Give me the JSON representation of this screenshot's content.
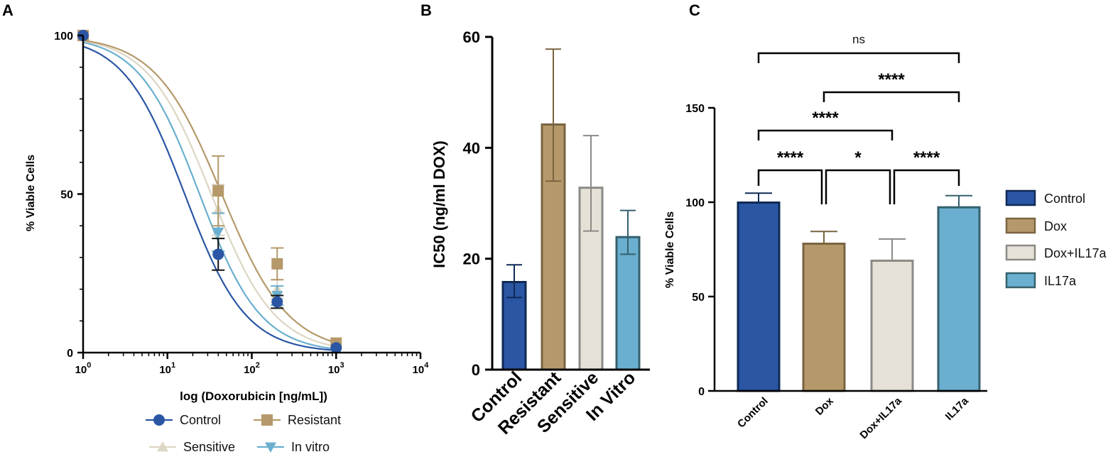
{
  "panels": {
    "a": {
      "letter": "A"
    },
    "b": {
      "letter": "B"
    },
    "c": {
      "letter": "C"
    }
  },
  "colors": {
    "control": "#2a56a4",
    "resistant": "#b5996a",
    "sensitive": "#e6e1d6",
    "invitro": "#6aafcf",
    "control_dark": "#0f2a55",
    "resistant_dark": "#7a6440",
    "sensitive_dark": "#8a8a86",
    "invitro_dark": "#35606c"
  },
  "chart_data": [
    {
      "id": "A",
      "type": "line",
      "title": "",
      "xlabel": "log (Doxorubicin [ng/mL])",
      "ylabel": "% Viable Cells",
      "x_scale": "log10",
      "xlim": [
        1,
        10000
      ],
      "ylim": [
        0,
        100
      ],
      "x_ticks": [
        {
          "value": 1,
          "base": "10",
          "exp": "0"
        },
        {
          "value": 10,
          "base": "10",
          "exp": "1"
        },
        {
          "value": 100,
          "base": "10",
          "exp": "2"
        },
        {
          "value": 1000,
          "base": "10",
          "exp": "3"
        },
        {
          "value": 10000,
          "base": "10",
          "exp": "4"
        }
      ],
      "y_ticks": [
        0,
        50,
        100
      ],
      "legend": [
        "Control",
        "Resistant",
        "Sensitive",
        "In vitro"
      ],
      "series": [
        {
          "key": "control",
          "name": "Control",
          "marker": "circle",
          "ic50": 16,
          "hill": 1.2,
          "points": [
            {
              "x": 1,
              "y": 100,
              "err": 0
            },
            {
              "x": 40,
              "y": 31,
              "err": 5
            },
            {
              "x": 200,
              "y": 16,
              "err": 2
            },
            {
              "x": 1000,
              "y": 1.5,
              "err": 0
            }
          ]
        },
        {
          "key": "resistant",
          "name": "Resistant",
          "marker": "square",
          "ic50": 44,
          "hill": 1.1,
          "points": [
            {
              "x": 1,
              "y": 100,
              "err": 0
            },
            {
              "x": 40,
              "y": 51,
              "err": 11
            },
            {
              "x": 200,
              "y": 28,
              "err": 5
            },
            {
              "x": 1000,
              "y": 3,
              "err": 0
            }
          ]
        },
        {
          "key": "sensitive",
          "name": "Sensitive",
          "marker": "triangle-up",
          "ic50": 33,
          "hill": 1.15,
          "points": [
            {
              "x": 1,
              "y": 100,
              "err": 0
            },
            {
              "x": 40,
              "y": 45,
              "err": 8
            },
            {
              "x": 200,
              "y": 20,
              "err": 3
            },
            {
              "x": 1000,
              "y": 2.5,
              "err": 0
            }
          ]
        },
        {
          "key": "invitro",
          "name": "In vitro",
          "marker": "triangle-down",
          "ic50": 24,
          "hill": 1.2,
          "points": [
            {
              "x": 1,
              "y": 100,
              "err": 0
            },
            {
              "x": 40,
              "y": 38,
              "err": 6
            },
            {
              "x": 200,
              "y": 18,
              "err": 3
            },
            {
              "x": 1000,
              "y": 2,
              "err": 0
            }
          ]
        }
      ]
    },
    {
      "id": "B",
      "type": "bar",
      "title": "",
      "xlabel": "",
      "ylabel": "IC50 (ng/ml DOX)",
      "ylim": [
        0,
        60
      ],
      "y_ticks": [
        0,
        20,
        40,
        60
      ],
      "categories": [
        "Control",
        "Resistant",
        "Sensitive",
        "In Vitro"
      ],
      "keys": [
        "control",
        "resistant",
        "sensitive",
        "invitro"
      ],
      "values": [
        15.8,
        44.2,
        32.8,
        23.9
      ],
      "err_low": [
        13.0,
        34.0,
        25.0,
        20.8
      ],
      "err_high": [
        18.9,
        57.8,
        42.2,
        28.7
      ]
    },
    {
      "id": "C",
      "type": "bar",
      "title": "",
      "xlabel": "",
      "ylabel": "% Viable Cells",
      "ylim": [
        0,
        150
      ],
      "y_ticks": [
        0,
        50,
        100,
        150
      ],
      "categories": [
        "Control",
        "Dox",
        "Dox+IL17a",
        "IL17a"
      ],
      "keys": [
        "control",
        "resistant",
        "sensitive",
        "invitro"
      ],
      "values": [
        99.8,
        78.0,
        69.0,
        97.3
      ],
      "err": [
        5.0,
        6.5,
        11.5,
        6.2
      ],
      "legend": [
        "Control",
        "Dox",
        "Dox+IL17a",
        "IL17a"
      ],
      "significance": [
        {
          "from": 0,
          "to": 3,
          "label": "ns",
          "level": 5
        },
        {
          "from": 1,
          "to": 3,
          "label": "****",
          "level": 4
        },
        {
          "from": 0,
          "to": 2,
          "label": "****",
          "level": 3
        },
        {
          "from": 0,
          "to": 1,
          "label": "****",
          "level": 1
        },
        {
          "from": 1,
          "to": 2,
          "label": "*",
          "level": 1
        },
        {
          "from": 2,
          "to": 3,
          "label": "****",
          "level": 1
        }
      ]
    }
  ]
}
